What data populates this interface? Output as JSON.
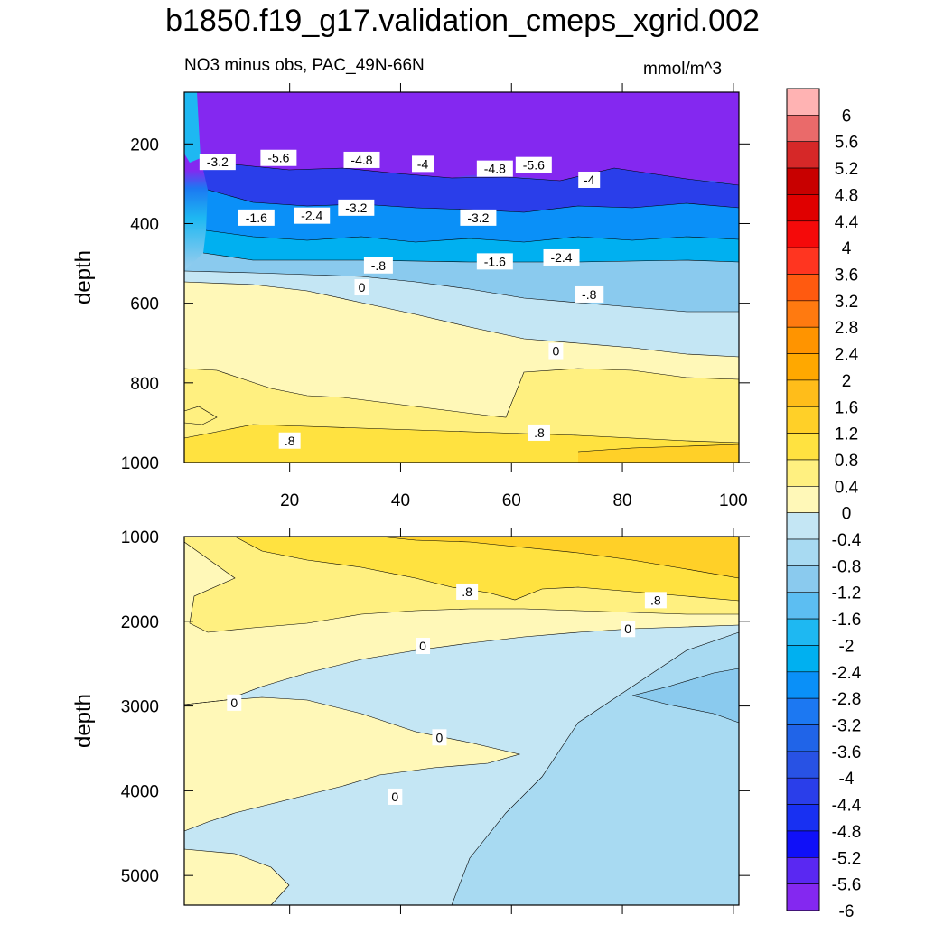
{
  "title": "b1850.f19_g17.validation_cmeps_xgrid.002",
  "subtitle": "NO3 minus obs, PAC_49N-66N",
  "units": "mmol/m^3",
  "chart_data": [
    {
      "type": "heatmap",
      "panel": "upper",
      "xlabel": "",
      "ylabel": "depth",
      "xlim": [
        1,
        101
      ],
      "ylim": [
        1000,
        70
      ],
      "x_ticks": [
        20,
        40,
        60,
        80,
        100
      ],
      "y_ticks": [
        200,
        400,
        600,
        800,
        1000
      ],
      "contour_labels": [
        {
          "text": "-3.2",
          "x": 7,
          "depth": 245
        },
        {
          "text": "-5.6",
          "x": 18,
          "depth": 235
        },
        {
          "text": "-4.8",
          "x": 33,
          "depth": 240
        },
        {
          "text": "-4",
          "x": 44,
          "depth": 250
        },
        {
          "text": "-4.8",
          "x": 57,
          "depth": 262
        },
        {
          "text": "-5.6",
          "x": 64,
          "depth": 253
        },
        {
          "text": "-4",
          "x": 74,
          "depth": 290
        },
        {
          "text": "-1.6",
          "x": 14,
          "depth": 385
        },
        {
          "text": "-2.4",
          "x": 24,
          "depth": 380
        },
        {
          "text": "-3.2",
          "x": 32,
          "depth": 360
        },
        {
          "text": "-3.2",
          "x": 54,
          "depth": 385
        },
        {
          "text": "-1.6",
          "x": 57,
          "depth": 495
        },
        {
          "text": "-2.4",
          "x": 69,
          "depth": 485
        },
        {
          "text": "-.8",
          "x": 36,
          "depth": 505
        },
        {
          "text": "-.8",
          "x": 74,
          "depth": 578
        },
        {
          "text": "0",
          "x": 33,
          "depth": 560
        },
        {
          "text": "0",
          "x": 68,
          "depth": 720
        },
        {
          "text": ".8",
          "x": 20,
          "depth": 945
        },
        {
          "text": ".8",
          "x": 65,
          "depth": 925
        }
      ]
    },
    {
      "type": "heatmap",
      "panel": "lower",
      "xlabel": "",
      "ylabel": "depth",
      "xlim": [
        1,
        101
      ],
      "ylim": [
        5350,
        1000
      ],
      "y_ticks": [
        1000,
        2000,
        3000,
        4000,
        5000
      ],
      "contour_labels": [
        {
          "text": ".8",
          "x": 52,
          "depth": 1650
        },
        {
          "text": ".8",
          "x": 86,
          "depth": 1750
        },
        {
          "text": "0",
          "x": 81,
          "depth": 2090
        },
        {
          "text": "0",
          "x": 44,
          "depth": 2290
        },
        {
          "text": "0",
          "x": 10,
          "depth": 2960
        },
        {
          "text": "0",
          "x": 47,
          "depth": 3370
        },
        {
          "text": "0",
          "x": 39,
          "depth": 4070
        }
      ]
    }
  ],
  "colorbar": {
    "labels": [
      "6",
      "5.6",
      "5.2",
      "4.8",
      "4.4",
      "4",
      "3.6",
      "3.2",
      "2.8",
      "2.4",
      "2",
      "1.6",
      "1.2",
      "0.8",
      "0.4",
      "0",
      "-0.4",
      "-0.8",
      "-1.2",
      "-1.6",
      "-2",
      "-2.4",
      "-2.8",
      "-3.2",
      "-3.6",
      "-4",
      "-4.4",
      "-4.8",
      "-5.2",
      "-5.6",
      "-6"
    ],
    "colors": [
      "#ffb3b3",
      "#ea6a6a",
      "#d62828",
      "#c80000",
      "#e00000",
      "#f50a0a",
      "#ff3520",
      "#ff5a10",
      "#ff7a10",
      "#ff9400",
      "#ffa800",
      "#ffbd1a",
      "#ffd028",
      "#ffe240",
      "#fff080",
      "#fff8b8",
      "#c4e6f4",
      "#a8daf2",
      "#8acaee",
      "#5cbef2",
      "#1eb8f2",
      "#00b0f0",
      "#0a90f8",
      "#1c78f2",
      "#2064e8",
      "#2852e4",
      "#2a3eea",
      "#1830f2",
      "#1010f8",
      "#5a28f2",
      "#8428f0"
    ]
  }
}
